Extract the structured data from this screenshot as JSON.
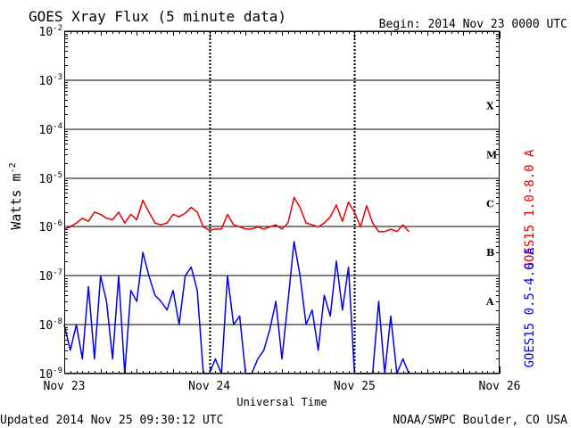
{
  "title": "GOES Xray Flux (5 minute data)",
  "begin": "Begin:  2014 Nov 23 0000 UTC",
  "updated": "Updated 2014 Nov 25 09:30:12 UTC",
  "credit": "NOAA/SWPC Boulder, CO USA",
  "colors": {
    "long": "#e60000",
    "short": "#0000e6",
    "grid": "#000000"
  },
  "chart_data": {
    "type": "line",
    "title": "GOES Xray Flux (5 minute data)",
    "xlabel": "Universal Time",
    "ylabel_base": "Watts m",
    "ylabel_exp": "-2",
    "yscale": "log",
    "ylim": [
      1e-09,
      0.01
    ],
    "xlim": [
      "2014-11-23 00:00",
      "2014-11-26 00:00"
    ],
    "x_ticks": [
      "Nov 23",
      "Nov 24",
      "Nov 25",
      "Nov 26"
    ],
    "y_ticks": [
      {
        "value": 0.01,
        "label": "10",
        "exp": "-2"
      },
      {
        "value": 0.001,
        "label": "10",
        "exp": "-3"
      },
      {
        "value": 0.0001,
        "label": "10",
        "exp": "-4"
      },
      {
        "value": 1e-05,
        "label": "10",
        "exp": "-5"
      },
      {
        "value": 1e-06,
        "label": "10",
        "exp": "-6"
      },
      {
        "value": 1e-07,
        "label": "10",
        "exp": "-7"
      },
      {
        "value": 1e-08,
        "label": "10",
        "exp": "-8"
      },
      {
        "value": 1e-09,
        "label": "10",
        "exp": "-9"
      }
    ],
    "flare_classes": [
      {
        "label": "X",
        "value": 0.0003
      },
      {
        "label": "M",
        "value": 3e-05
      },
      {
        "label": "C",
        "value": 3e-06
      },
      {
        "label": "B",
        "value": 3e-07
      },
      {
        "label": "A",
        "value": 3e-08
      }
    ],
    "grid": true,
    "series": [
      {
        "name": "GOES15 1.0-8.0 A",
        "color": "#e60000",
        "x": [
          "2014-11-23 00:00",
          "2014-11-23 01:00",
          "2014-11-23 02:00",
          "2014-11-23 03:00",
          "2014-11-23 04:00",
          "2014-11-23 05:00",
          "2014-11-23 06:00",
          "2014-11-23 07:00",
          "2014-11-23 08:00",
          "2014-11-23 09:00",
          "2014-11-23 10:00",
          "2014-11-23 11:00",
          "2014-11-23 12:00",
          "2014-11-23 13:00",
          "2014-11-23 14:00",
          "2014-11-23 15:00",
          "2014-11-23 16:00",
          "2014-11-23 17:00",
          "2014-11-23 18:00",
          "2014-11-23 19:00",
          "2014-11-23 20:00",
          "2014-11-23 21:00",
          "2014-11-23 22:00",
          "2014-11-23 23:00",
          "2014-11-24 00:00",
          "2014-11-24 01:00",
          "2014-11-24 02:00",
          "2014-11-24 03:00",
          "2014-11-24 04:00",
          "2014-11-24 05:00",
          "2014-11-24 06:00",
          "2014-11-24 07:00",
          "2014-11-24 08:00",
          "2014-11-24 09:00",
          "2014-11-24 10:00",
          "2014-11-24 11:00",
          "2014-11-24 12:00",
          "2014-11-24 13:00",
          "2014-11-24 14:00",
          "2014-11-24 15:00",
          "2014-11-24 16:00",
          "2014-11-24 17:00",
          "2014-11-24 18:00",
          "2014-11-24 19:00",
          "2014-11-24 20:00",
          "2014-11-24 21:00",
          "2014-11-24 22:00",
          "2014-11-24 23:00",
          "2014-11-25 00:00",
          "2014-11-25 01:00",
          "2014-11-25 02:00",
          "2014-11-25 03:00",
          "2014-11-25 04:00",
          "2014-11-25 05:00",
          "2014-11-25 06:00",
          "2014-11-25 07:00",
          "2014-11-25 08:00",
          "2014-11-25 09:00"
        ],
        "values": [
          9e-07,
          1e-06,
          1.2e-06,
          1.5e-06,
          1.3e-06,
          2e-06,
          1.8e-06,
          1.5e-06,
          1.4e-06,
          2e-06,
          1.2e-06,
          1.8e-06,
          1.4e-06,
          3.5e-06,
          2e-06,
          1.2e-06,
          1.1e-06,
          1.2e-06,
          1.8e-06,
          1.6e-06,
          1.9e-06,
          2.5e-06,
          2e-06,
          1e-06,
          8.5e-07,
          9e-07,
          9e-07,
          1.8e-06,
          1.1e-06,
          1e-06,
          9e-07,
          9e-07,
          1e-06,
          9e-07,
          1e-06,
          1.1e-06,
          9e-07,
          1.2e-06,
          4e-06,
          2.5e-06,
          1.2e-06,
          1.1e-06,
          1e-06,
          1.2e-06,
          1.6e-06,
          2.8e-06,
          1.3e-06,
          3.2e-06,
          2e-06,
          1e-06,
          2.7e-06,
          1.2e-06,
          8e-07,
          8e-07,
          9e-07,
          8e-07,
          1.1e-06,
          8e-07
        ]
      },
      {
        "name": "GOES15 0.5-4.0 A",
        "color": "#0000e6",
        "x": [
          "2014-11-23 00:00",
          "2014-11-23 01:00",
          "2014-11-23 02:00",
          "2014-11-23 03:00",
          "2014-11-23 04:00",
          "2014-11-23 05:00",
          "2014-11-23 06:00",
          "2014-11-23 07:00",
          "2014-11-23 08:00",
          "2014-11-23 09:00",
          "2014-11-23 10:00",
          "2014-11-23 11:00",
          "2014-11-23 12:00",
          "2014-11-23 13:00",
          "2014-11-23 14:00",
          "2014-11-23 15:00",
          "2014-11-23 16:00",
          "2014-11-23 17:00",
          "2014-11-23 18:00",
          "2014-11-23 19:00",
          "2014-11-23 20:00",
          "2014-11-23 21:00",
          "2014-11-23 22:00",
          "2014-11-23 23:00",
          "2014-11-24 00:00",
          "2014-11-24 01:00",
          "2014-11-24 02:00",
          "2014-11-24 03:00",
          "2014-11-24 04:00",
          "2014-11-24 05:00",
          "2014-11-24 06:00",
          "2014-11-24 07:00",
          "2014-11-24 08:00",
          "2014-11-24 09:00",
          "2014-11-24 10:00",
          "2014-11-24 11:00",
          "2014-11-24 12:00",
          "2014-11-24 13:00",
          "2014-11-24 14:00",
          "2014-11-24 15:00",
          "2014-11-24 16:00",
          "2014-11-24 17:00",
          "2014-11-24 18:00",
          "2014-11-24 19:00",
          "2014-11-24 20:00",
          "2014-11-24 21:00",
          "2014-11-24 22:00",
          "2014-11-24 23:00",
          "2014-11-25 00:00",
          "2014-11-25 01:00",
          "2014-11-25 02:00",
          "2014-11-25 03:00",
          "2014-11-25 04:00",
          "2014-11-25 05:00",
          "2014-11-25 06:00",
          "2014-11-25 07:00",
          "2014-11-25 08:00",
          "2014-11-25 09:00"
        ],
        "values": [
          1e-08,
          3e-09,
          1e-08,
          2e-09,
          6e-08,
          2e-09,
          1e-07,
          3e-08,
          2e-09,
          1e-07,
          1e-09,
          5e-08,
          3e-08,
          3e-07,
          1e-07,
          4e-08,
          3e-08,
          2e-08,
          5e-08,
          1e-08,
          1e-07,
          1.5e-07,
          5e-08,
          1e-09,
          1e-09,
          2e-09,
          1e-09,
          1e-07,
          1e-08,
          1.5e-08,
          1e-09,
          1e-09,
          2e-09,
          3e-09,
          8e-09,
          3e-08,
          2e-09,
          3e-08,
          5e-07,
          1e-07,
          1e-08,
          2e-08,
          3e-09,
          4e-08,
          1.5e-08,
          2e-07,
          2e-08,
          1.5e-07,
          1e-09,
          1e-09,
          1e-09,
          1e-09,
          3e-08,
          1e-09,
          1.5e-08,
          1e-09,
          2e-09,
          1e-09
        ]
      }
    ]
  }
}
